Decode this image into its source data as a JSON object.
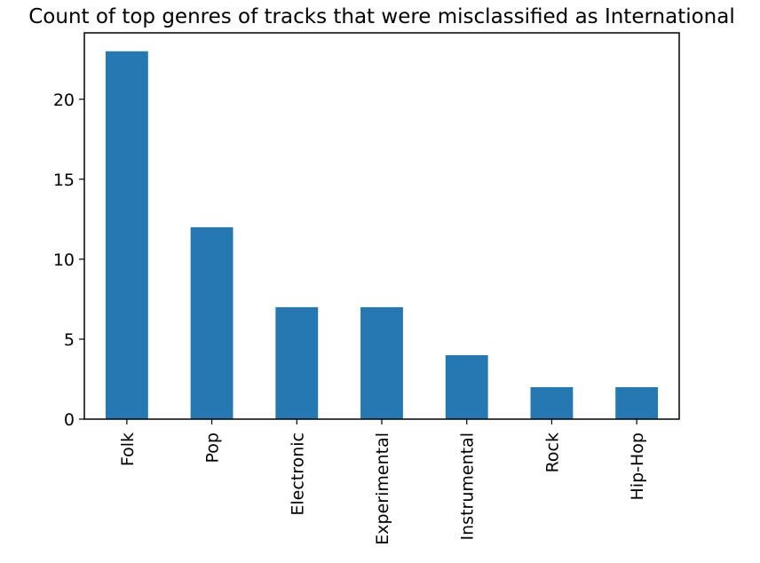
{
  "chart_data": {
    "type": "bar",
    "title": "Count of top genres of tracks that were misclassified as International",
    "xlabel": "",
    "ylabel": "",
    "categories": [
      "Folk",
      "Pop",
      "Electronic",
      "Experimental",
      "Instrumental",
      "Rock",
      "Hip-Hop"
    ],
    "values": [
      23,
      12,
      7,
      7,
      4,
      2,
      2
    ],
    "ylim": [
      0,
      24.15
    ],
    "yticks": [
      0,
      5,
      10,
      15,
      20
    ],
    "grid": false,
    "legend": "none",
    "colors": {
      "bar": "#2678b2",
      "axis": "#000000",
      "background": "#ffffff"
    }
  }
}
